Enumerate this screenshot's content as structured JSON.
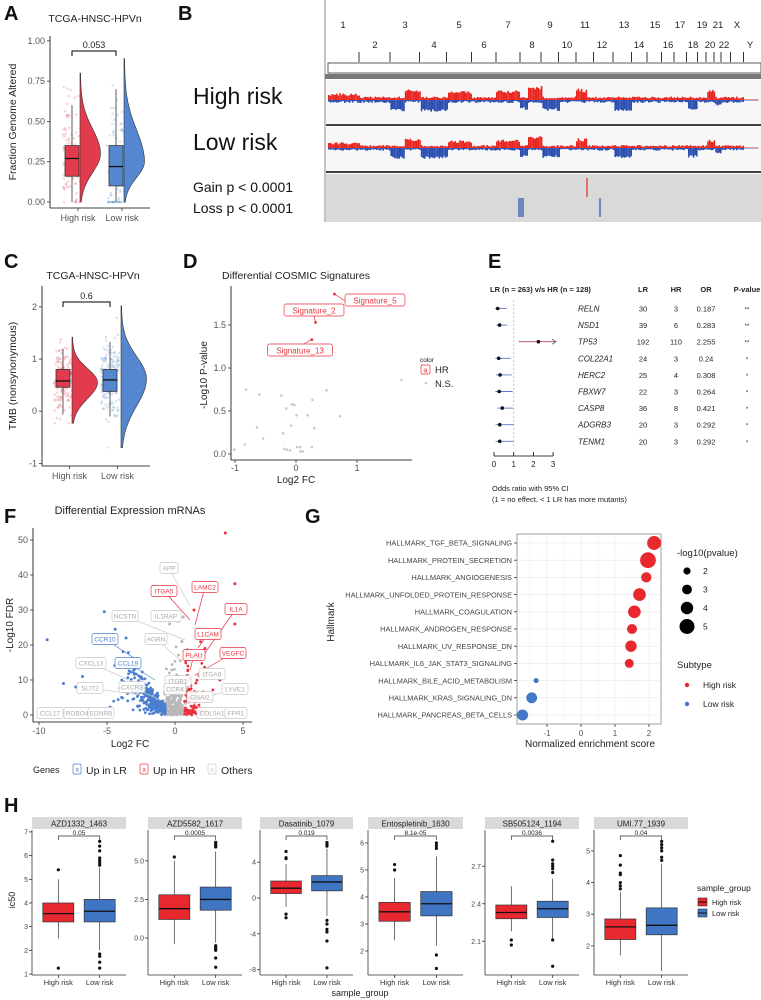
{
  "chart_data": [
    {
      "panel": "A",
      "type": "violin-box",
      "title": "TCGA-HNSC-HPVn",
      "ylabel": "Fraction Genome Altered",
      "yticks": [
        "0.00",
        "0.25",
        "0.50",
        "0.75",
        "1.00"
      ],
      "ylim": [
        0,
        1.03
      ],
      "p_value": "0.053",
      "groups": [
        {
          "name": "High risk",
          "color": "#e23b4e",
          "q1": 0.16,
          "median": 0.27,
          "q3": 0.35,
          "lo": 0.0,
          "hi": 0.6,
          "violin": {
            "min": 0.0,
            "max": 0.8,
            "mode": 0.3
          }
        },
        {
          "name": "Low risk",
          "color": "#5487cf",
          "q1": 0.1,
          "median": 0.22,
          "q3": 0.35,
          "lo": 0.0,
          "hi": 0.7,
          "violin": {
            "min": 0.0,
            "max": 0.89,
            "mode": 0.25
          }
        }
      ]
    },
    {
      "panel": "B",
      "type": "copy-number",
      "chromosomes": [
        "1",
        "2",
        "3",
        "4",
        "5",
        "6",
        "7",
        "8",
        "9",
        "10",
        "11",
        "12",
        "13",
        "14",
        "15",
        "16",
        "17",
        "18",
        "19",
        "20",
        "21",
        "22",
        "X",
        "Y"
      ],
      "tracks": [
        "High risk",
        "Low risk"
      ],
      "annotations": [
        "Gain p < 0.0001",
        "Loss p < 0.0001"
      ],
      "colors": {
        "gain": "#e8251f",
        "loss": "#2a4fb0"
      }
    },
    {
      "panel": "C",
      "type": "violin-box",
      "title": "TCGA-HNSC-HPVn",
      "ylabel": "TMB (nonsynonymous)",
      "yticks": [
        "-1",
        "0",
        "1",
        "2"
      ],
      "ylim": [
        -1.05,
        2.4
      ],
      "p_value": "0.6",
      "groups": [
        {
          "name": "High risk",
          "color": "#e23b4e",
          "q1": 0.46,
          "median": 0.58,
          "q3": 0.8,
          "lo": -0.05,
          "hi": 1.2,
          "violin": {
            "min": -0.23,
            "max": 1.42,
            "mode": 0.55
          }
        },
        {
          "name": "Low risk",
          "color": "#5487cf",
          "q1": 0.38,
          "median": 0.6,
          "q3": 0.8,
          "lo": -0.1,
          "hi": 1.33,
          "violin": {
            "min": -0.7,
            "max": 2.02,
            "mode": 0.62
          }
        }
      ]
    },
    {
      "panel": "D",
      "type": "scatter",
      "title": "Differential COSMIC Signatures",
      "xlabel": "Log2 FC",
      "ylabel": "-Log10 P-value",
      "xticks": [
        "-1",
        "0",
        "1"
      ],
      "yticks": [
        "0.0",
        "0.5",
        "1.0",
        "1.5"
      ],
      "legend_title": "color",
      "legend_key": "a",
      "legend": [
        "HR",
        "N.S."
      ],
      "labeled_points": [
        {
          "label": "Signature_5",
          "x": 0.63,
          "y": 1.86
        },
        {
          "label": "Signature_2",
          "x": 0.32,
          "y": 1.53
        },
        {
          "label": "Signature_13",
          "x": 0.26,
          "y": 1.33
        }
      ],
      "ns_points": [
        [
          -0.82,
          0.75
        ],
        [
          -0.6,
          0.69
        ],
        [
          -0.24,
          0.68
        ],
        [
          0.5,
          0.74
        ],
        [
          0.27,
          0.63
        ],
        [
          -0.07,
          0.58
        ],
        [
          -0.03,
          0.57
        ],
        [
          -0.16,
          0.53
        ],
        [
          0.01,
          0.45
        ],
        [
          0.19,
          0.45
        ],
        [
          0.72,
          0.44
        ],
        [
          1.73,
          0.86
        ],
        [
          -0.64,
          0.31
        ],
        [
          -0.08,
          0.33
        ],
        [
          0.3,
          0.3
        ],
        [
          -0.21,
          0.24
        ],
        [
          -0.54,
          0.18
        ],
        [
          -0.84,
          0.11
        ],
        [
          -1.01,
          0.05
        ],
        [
          -0.19,
          0.06
        ],
        [
          -0.15,
          0.05
        ],
        [
          -0.1,
          0.04
        ],
        [
          0.02,
          0.08
        ],
        [
          0.07,
          0.08
        ],
        [
          0.26,
          0.08
        ],
        [
          0.07,
          0.03
        ],
        [
          0.11,
          0.03
        ]
      ]
    },
    {
      "panel": "E",
      "type": "forest",
      "header": "LR (n = 263) v/s HR (n = 128)",
      "columns": [
        "LR",
        "HR",
        "OR",
        "P-value"
      ],
      "xticks": [
        "0",
        "1",
        "2",
        "3"
      ],
      "rows": [
        {
          "gene": "RELN",
          "LR": 30,
          "HR": 3,
          "OR": "0.187",
          "p": "**",
          "ci": [
            0.06,
            0.63
          ]
        },
        {
          "gene": "NSD1",
          "LR": 39,
          "HR": 6,
          "OR": "0.283",
          "p": "**",
          "ci": [
            0.12,
            0.67
          ]
        },
        {
          "gene": "TP53",
          "LR": 192,
          "HR": 110,
          "OR": "2.255",
          "p": "**",
          "ci": [
            1.25,
            3.35
          ]
        },
        {
          "gene": "COL22A1",
          "LR": 24,
          "HR": 3,
          "OR": "0.24",
          "p": "*",
          "ci": [
            0.06,
            0.85
          ]
        },
        {
          "gene": "HERC2",
          "LR": 25,
          "HR": 4,
          "OR": "0.308",
          "p": "*",
          "ci": [
            0.1,
            0.9
          ]
        },
        {
          "gene": "FBXW7",
          "LR": 22,
          "HR": 3,
          "OR": "0.264",
          "p": "*",
          "ci": [
            0.07,
            0.95
          ]
        },
        {
          "gene": "CASP8",
          "LR": 36,
          "HR": 8,
          "OR": "0.421",
          "p": "*",
          "ci": [
            0.18,
            0.98
          ]
        },
        {
          "gene": "ADGRB3",
          "LR": 20,
          "HR": 3,
          "OR": "0.292",
          "p": "*",
          "ci": [
            0.08,
            1.0
          ]
        },
        {
          "gene": "TENM1",
          "LR": 20,
          "HR": 3,
          "OR": "0.292",
          "p": "*",
          "ci": [
            0.08,
            1.0
          ]
        }
      ],
      "footnote": [
        "Odds ratio with 95% CI",
        "(1 = no effect, < 1 LR has more mutants)"
      ]
    },
    {
      "panel": "F",
      "type": "scatter",
      "title": "Differential Expression mRNAs",
      "xlabel": "Log2 FC",
      "ylabel": "-Log10 FDR",
      "xticks": [
        "-10",
        "-5",
        "0",
        "5"
      ],
      "yticks": [
        "0",
        "10",
        "20",
        "30",
        "40",
        "50"
      ],
      "legend_title": "Genes",
      "legend_key": "a",
      "legend": [
        "Up in LR",
        "Up in HR",
        "Others"
      ],
      "colors": {
        "LR": "#4a7fcf",
        "HR": "#e8333f",
        "other": "#b8b8b8"
      },
      "gene_labels": [
        {
          "text": "APP",
          "group": "other"
        },
        {
          "text": "LAMC2",
          "group": "HR"
        },
        {
          "text": "ITGA5",
          "group": "HR"
        },
        {
          "text": "IL1A",
          "group": "HR"
        },
        {
          "text": "NCSTN",
          "group": "other"
        },
        {
          "text": "IL1RAP",
          "group": "other"
        },
        {
          "text": "L1CAM",
          "group": "HR"
        },
        {
          "text": "AGRN",
          "group": "other"
        },
        {
          "text": "CCR10",
          "group": "LR"
        },
        {
          "text": "PLAU",
          "group": "HR"
        },
        {
          "text": "VEGFC",
          "group": "HR"
        },
        {
          "text": "CXCL13",
          "group": "other"
        },
        {
          "text": "CCL19",
          "group": "LR"
        },
        {
          "text": "ITGA6",
          "group": "other"
        },
        {
          "text": "ITGB1",
          "group": "other"
        },
        {
          "text": "SLIT2",
          "group": "other"
        },
        {
          "text": "CXCR3",
          "group": "other"
        },
        {
          "text": "CCR4",
          "group": "other"
        },
        {
          "text": "LYVE1",
          "group": "other"
        },
        {
          "text": "GNAI2",
          "group": "other"
        },
        {
          "text": "CCL17",
          "group": "other"
        },
        {
          "text": "ROBO4",
          "group": "other"
        },
        {
          "text": "EDNRB",
          "group": "other"
        },
        {
          "text": "COL5A1",
          "group": "other"
        },
        {
          "text": "FPR1",
          "group": "other"
        }
      ]
    },
    {
      "panel": "G",
      "type": "dot",
      "ylabel": "Hallmark",
      "xlabel": "Normalized enrichment score",
      "xticks": [
        "-1",
        "0",
        "1",
        "2"
      ],
      "terms": [
        {
          "term": "HALLMARK_TGF_BETA_SIGNALING",
          "nes": 2.15,
          "logp": 4.6,
          "subtype": "High risk"
        },
        {
          "term": "HALLMARK_PROTEIN_SECRETION",
          "nes": 1.97,
          "logp": 5.3,
          "subtype": "High risk"
        },
        {
          "term": "HALLMARK_ANGIOGENESIS",
          "nes": 1.92,
          "logp": 3.2,
          "subtype": "High risk"
        },
        {
          "term": "HALLMARK_UNFOLDED_PROTEIN_RESPONSE",
          "nes": 1.72,
          "logp": 4.1,
          "subtype": "High risk"
        },
        {
          "term": "HALLMARK_COAGULATION",
          "nes": 1.57,
          "logp": 4.1,
          "subtype": "High risk"
        },
        {
          "term": "HALLMARK_ANDROGEN_RESPONSE",
          "nes": 1.5,
          "logp": 3.1,
          "subtype": "High risk"
        },
        {
          "term": "HALLMARK_UV_RESPONSE_DN",
          "nes": 1.47,
          "logp": 3.6,
          "subtype": "High risk"
        },
        {
          "term": "HALLMARK_IL6_JAK_STAT3_SIGNALING",
          "nes": 1.42,
          "logp": 2.7,
          "subtype": "High risk"
        },
        {
          "term": "HALLMARK_BILE_ACID_METABOLISM",
          "nes": -1.32,
          "logp": 1.2,
          "subtype": "Low risk"
        },
        {
          "term": "HALLMARK_KRAS_SIGNALING_DN",
          "nes": -1.45,
          "logp": 3.4,
          "subtype": "Low risk"
        },
        {
          "term": "HALLMARK_PANCREAS_BETA_CELLS",
          "nes": -1.72,
          "logp": 3.5,
          "subtype": "Low risk"
        }
      ],
      "size_legend_title": "-log10(pvalue)",
      "size_legend": [
        "2",
        "3",
        "4",
        "5"
      ],
      "color_legend_title": "Subtype",
      "color_legend": [
        "High risk",
        "Low risk"
      ],
      "colors": {
        "High risk": "#e8282f",
        "Low risk": "#4477c9"
      }
    },
    {
      "panel": "H",
      "type": "box",
      "ylabel": "ic50",
      "xlabel": "sample_group",
      "categories": [
        "High risk",
        "Low risk"
      ],
      "legend_title": "sample_group",
      "legend": [
        "High risk",
        "Low risk"
      ],
      "colors": [
        "#e8282f",
        "#3f75c3"
      ],
      "facets": [
        {
          "name": "AZD1332_1463",
          "p": "0.05",
          "yticks": [
            "1",
            "2",
            "3",
            "4",
            "5",
            "6",
            "7"
          ],
          "ylim": [
            0.96,
            7.08
          ],
          "groups": [
            {
              "q1": 3.2,
              "median": 3.55,
              "q3": 4.0,
              "lo": 2.5,
              "hi": 5.0,
              "out": [
                5.4,
                1.25
              ]
            },
            {
              "q1": 3.2,
              "median": 3.65,
              "q3": 4.15,
              "lo": 2.0,
              "hi": 5.5,
              "out": [
                5.6,
                5.7,
                5.8,
                5.9,
                6.2,
                6.4,
                6.6,
                1.85,
                1.75,
                1.5,
                1.25
              ]
            }
          ]
        },
        {
          "name": "AZD5582_1617",
          "p": "0.0005",
          "yticks": [
            "0.0",
            "2.5",
            "5.0"
          ],
          "ylim": [
            -2.4,
            7.0
          ],
          "groups": [
            {
              "q1": 1.2,
              "median": 1.9,
              "q3": 2.8,
              "lo": -0.4,
              "hi": 5.0,
              "out": [
                5.25
              ]
            },
            {
              "q1": 1.8,
              "median": 2.5,
              "q3": 3.3,
              "lo": -0.3,
              "hi": 5.6,
              "out": [
                5.9,
                6.0,
                6.1,
                6.2,
                -0.5,
                -0.6,
                -0.7,
                -0.8,
                -1.3,
                -1.9
              ]
            }
          ]
        },
        {
          "name": "Dasatinib_1079",
          "p": "0.019",
          "yticks": [
            "-8",
            "-4",
            "0",
            "4"
          ],
          "ylim": [
            -8.6,
            7.6
          ],
          "groups": [
            {
              "q1": 0.5,
              "median": 1.1,
              "q3": 1.9,
              "lo": -1.0,
              "hi": 3.8,
              "out": [
                4.4,
                4.5,
                5.2,
                -1.8,
                -2.2
              ]
            },
            {
              "q1": 0.8,
              "median": 1.8,
              "q3": 2.5,
              "lo": -2.0,
              "hi": 5.5,
              "out": [
                5.8,
                6.0,
                6.2,
                -2.5,
                -2.9,
                -3.5,
                -3.8,
                -4.8,
                -7.8
              ]
            }
          ]
        },
        {
          "name": "Entospletinib_1630",
          "p": "8.1e-05",
          "yticks": [
            "2",
            "3",
            "4",
            "5",
            "6"
          ],
          "ylim": [
            1.11,
            6.48
          ],
          "groups": [
            {
              "q1": 3.1,
              "median": 3.45,
              "q3": 3.8,
              "lo": 2.4,
              "hi": 4.7,
              "out": [
                5.0,
                5.2
              ]
            },
            {
              "q1": 3.3,
              "median": 3.75,
              "q3": 4.2,
              "lo": 2.2,
              "hi": 5.5,
              "out": [
                5.8,
                5.9,
                6.0,
                1.85,
                1.35
              ]
            }
          ]
        },
        {
          "name": "SB505124_1194",
          "p": "0.0036",
          "yticks": [
            "2.1",
            "2.4",
            "2.7"
          ],
          "ylim": [
            1.83,
            2.99
          ],
          "groups": [
            {
              "q1": 2.28,
              "median": 2.33,
              "q3": 2.39,
              "lo": 2.18,
              "hi": 2.54,
              "out": [
                2.11,
                2.07
              ]
            },
            {
              "q1": 2.29,
              "median": 2.36,
              "q3": 2.42,
              "lo": 2.12,
              "hi": 2.6,
              "out": [
                2.65,
                2.68,
                2.7,
                2.72,
                2.75,
                2.9,
                2.11,
                1.9
              ]
            }
          ]
        },
        {
          "name": "UMI.77_1939",
          "p": "0.04",
          "yticks": [
            "2",
            "3",
            "4",
            "5"
          ],
          "ylim": [
            1.08,
            5.66
          ],
          "groups": [
            {
              "q1": 2.2,
              "median": 2.6,
              "q3": 2.85,
              "lo": 1.7,
              "hi": 3.7,
              "out": [
                3.8,
                3.9,
                4.0,
                4.25,
                4.3,
                4.55,
                4.85
              ]
            },
            {
              "q1": 2.35,
              "median": 2.65,
              "q3": 3.2,
              "lo": 1.2,
              "hi": 4.6,
              "out": [
                4.7,
                4.8,
                5.0,
                5.1,
                5.2,
                5.3
              ]
            }
          ]
        }
      ]
    }
  ]
}
